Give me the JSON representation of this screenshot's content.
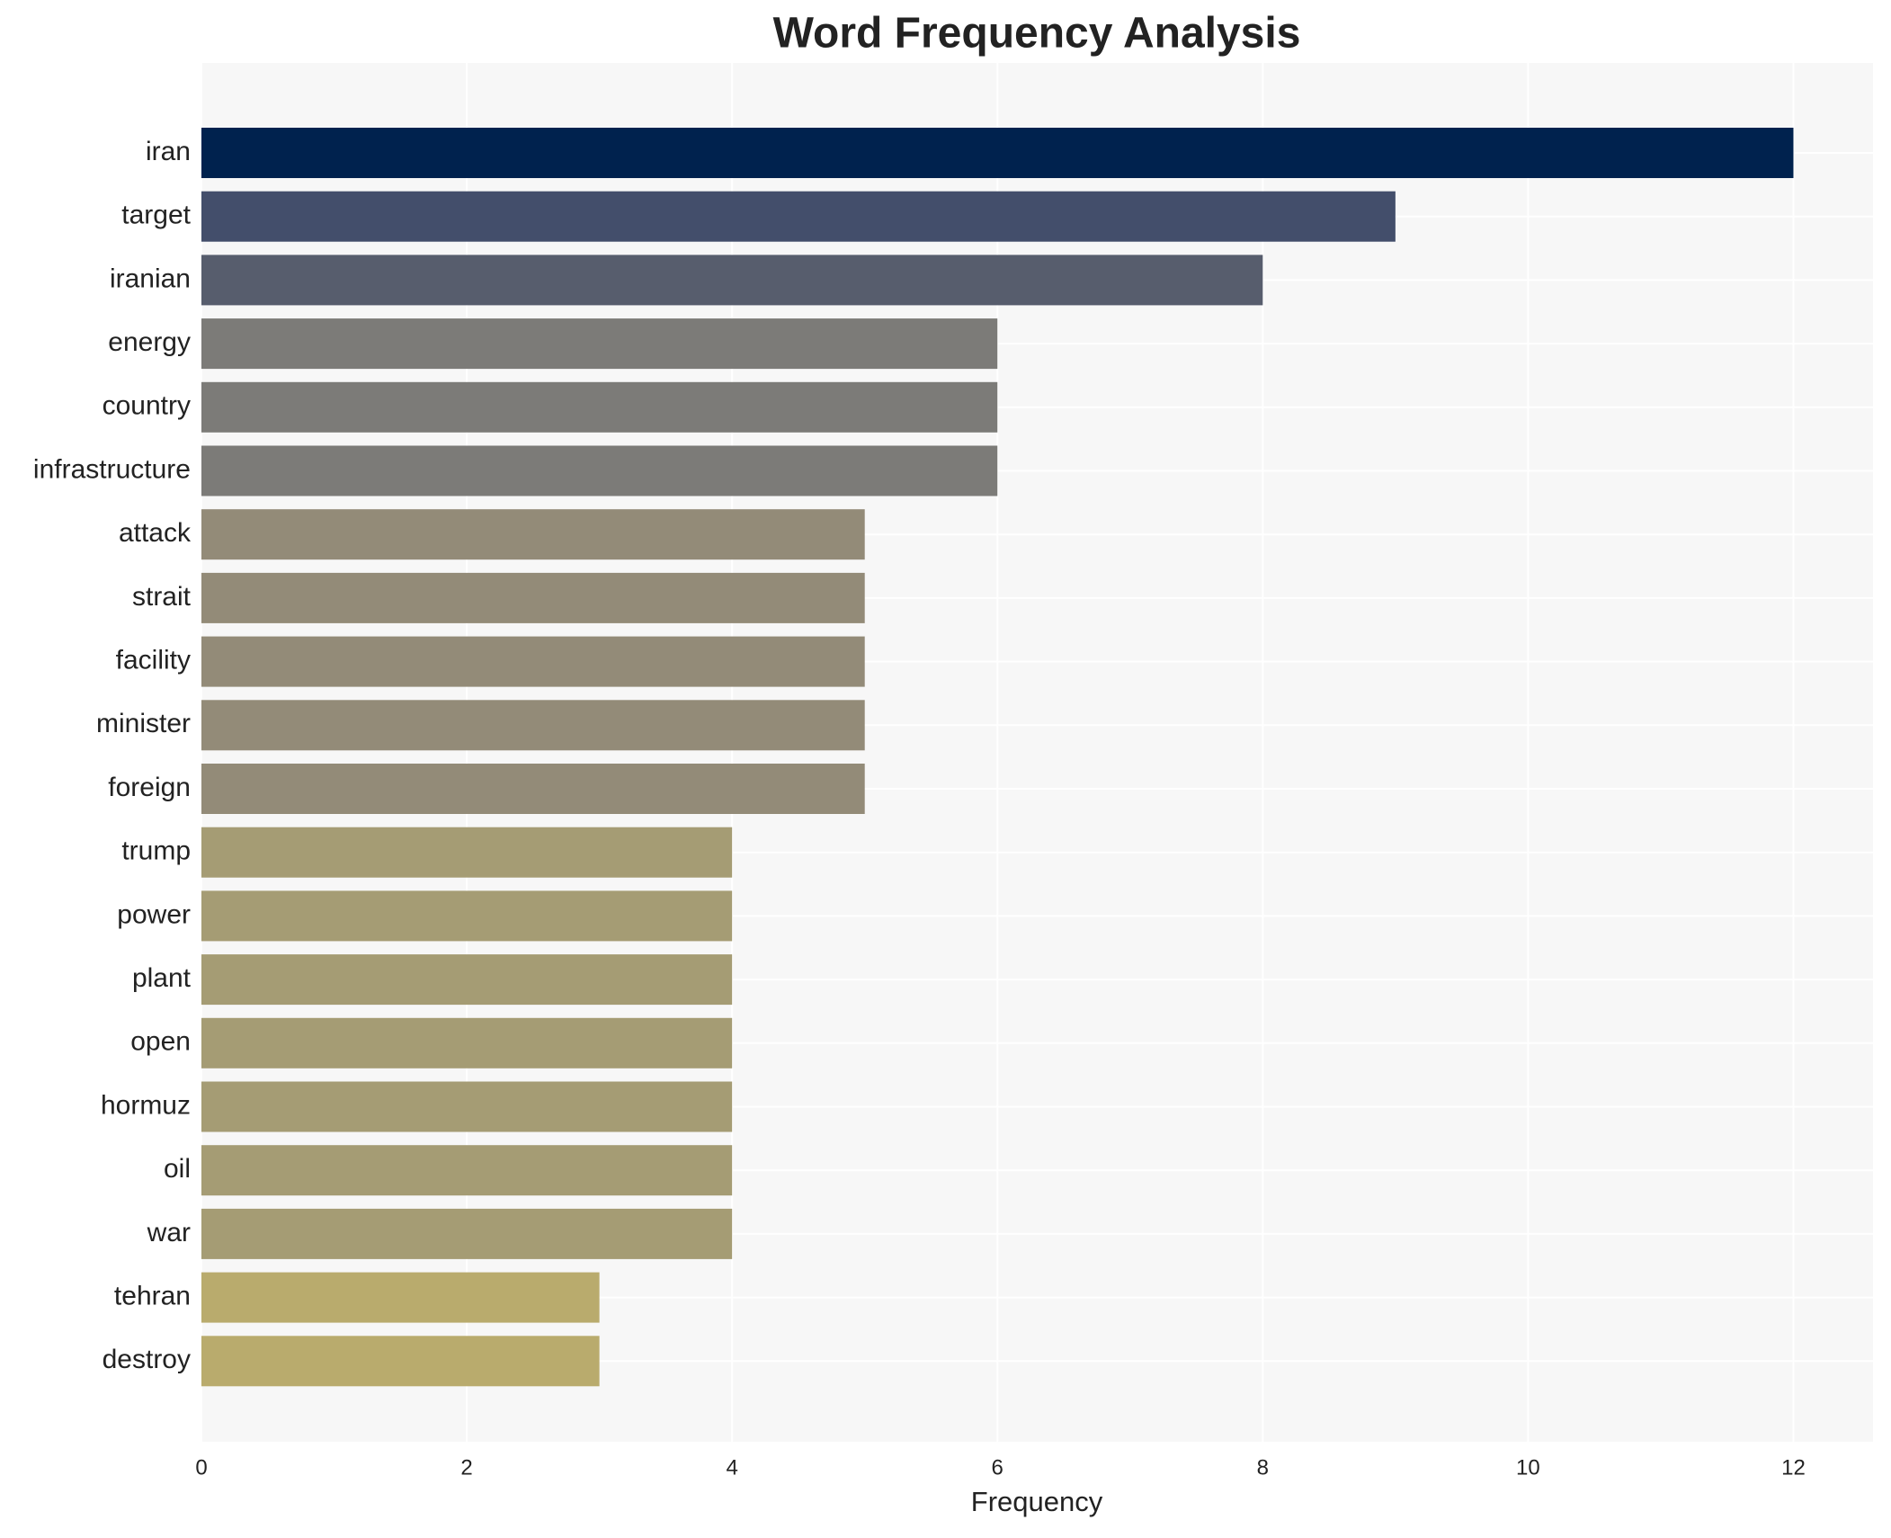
{
  "chart_data": {
    "type": "bar",
    "orientation": "horizontal",
    "title": "Word Frequency Analysis",
    "x_label": "Frequency",
    "categories": [
      "iran",
      "target",
      "iranian",
      "energy",
      "country",
      "infrastructure",
      "attack",
      "strait",
      "facility",
      "minister",
      "foreign",
      "trump",
      "power",
      "plant",
      "open",
      "hormuz",
      "oil",
      "war",
      "tehran",
      "destroy"
    ],
    "values": [
      12,
      9,
      8,
      6,
      6,
      6,
      5,
      5,
      5,
      5,
      5,
      4,
      4,
      4,
      4,
      4,
      4,
      4,
      3,
      3
    ],
    "colors": [
      "#00224e",
      "#434e6b",
      "#575d6d",
      "#7c7b78",
      "#7c7b78",
      "#7c7b78",
      "#938b78",
      "#938b78",
      "#938b78",
      "#938b78",
      "#938b78",
      "#a59c74",
      "#a59c74",
      "#a59c74",
      "#a59c74",
      "#a59c74",
      "#a59c74",
      "#a59c74",
      "#b9ab6d",
      "#b9ab6d"
    ],
    "xlim": [
      0,
      12.6
    ],
    "xticks": [
      0,
      2,
      4,
      6,
      8,
      10,
      12
    ],
    "grid": true
  }
}
